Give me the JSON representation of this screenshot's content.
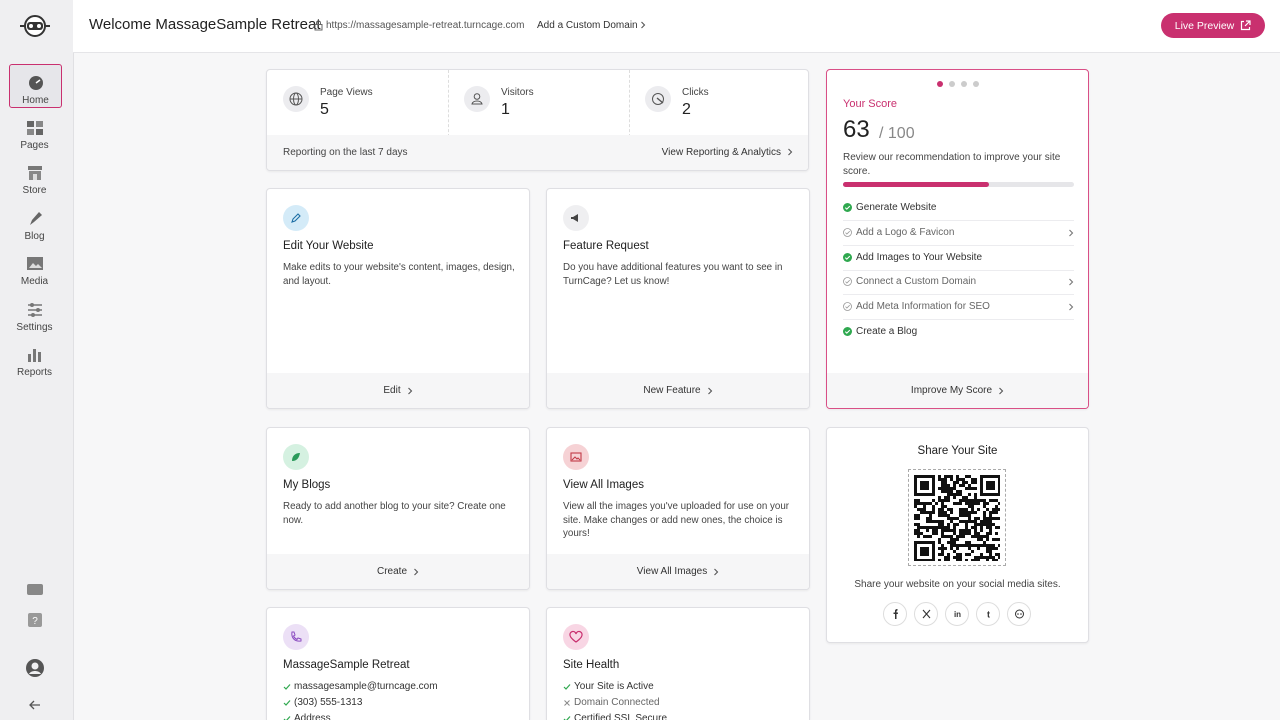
{
  "header": {
    "title": "Welcome MassageSample Retreat",
    "url": "https://massagesample-retreat.turncage.com",
    "domain_link": "Add a Custom Domain",
    "live_preview": "Live Preview"
  },
  "sidebar": {
    "nav": [
      "Home",
      "Pages",
      "Store",
      "Blog",
      "Media",
      "Settings",
      "Reports"
    ],
    "active": 0
  },
  "stats": {
    "items": [
      {
        "label": "Page Views",
        "value": 5
      },
      {
        "label": "Visitors",
        "value": 1
      },
      {
        "label": "Clicks",
        "value": 2
      }
    ],
    "footer_note": "Reporting on the last 7 days",
    "footer_link": "View Reporting & Analytics"
  },
  "score": {
    "title": "Your Score",
    "value": 63,
    "max": {
      "value": 100,
      "label": "/ 100"
    },
    "description": "Review our recommendation to improve your site score.",
    "items": [
      {
        "label": "Generate Website",
        "done": true
      },
      {
        "label": "Add a Logo & Favicon",
        "done": false
      },
      {
        "label": "Add Images to Your Website",
        "done": true
      },
      {
        "label": "Connect a Custom Domain",
        "done": false
      },
      {
        "label": "Add Meta Information for SEO",
        "done": false
      },
      {
        "label": "Create a Blog",
        "done": true
      }
    ],
    "link": "Improve My Score"
  },
  "cards": [
    {
      "title": "Edit Your Website",
      "description": "Make edits to your website's content, images, design, and layout.",
      "link": "Edit"
    },
    {
      "title": "Feature Request",
      "description": "Do you have additional features you want to see in TurnCage? Let us know!",
      "link": "New Feature"
    },
    {
      "title": "My Blogs",
      "description": "Ready to add another blog to your site? Create one now.",
      "link": "Create"
    },
    {
      "title": "View All Images",
      "description": "View all the images you've uploaded for use on your site. Make changes or add new ones, the choice is yours!",
      "link": "View All Images"
    }
  ],
  "contact": {
    "title": "MassageSample Retreat",
    "items": [
      "massagesample@turncage.com",
      "(303) 555-1313",
      "Address"
    ]
  },
  "health": {
    "title": "Site Health",
    "items": [
      {
        "label": "Your Site is Active",
        "ok": true
      },
      {
        "label": "Domain Connected",
        "ok": false
      },
      {
        "label": "Certified SSL Secure",
        "ok": true
      }
    ]
  },
  "share": {
    "title": "Share Your Site",
    "text": "Share your website on your social media sites."
  }
}
